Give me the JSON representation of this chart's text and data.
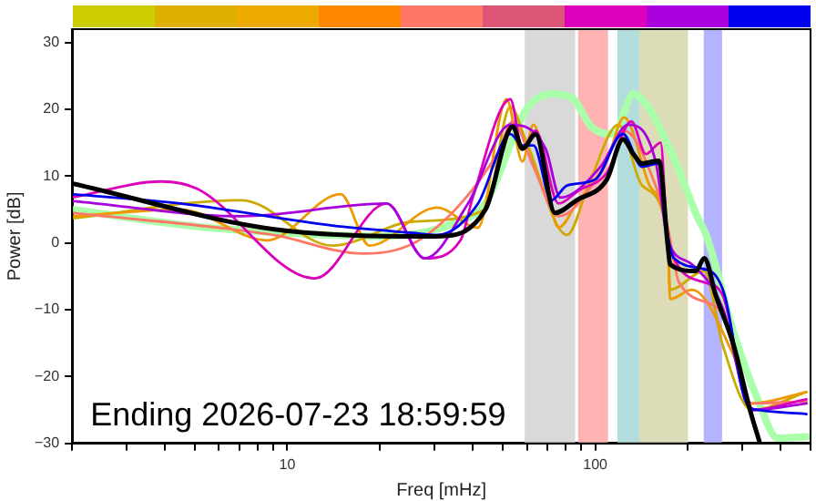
{
  "chart_data": {
    "type": "line",
    "xlabel": "Freq [mHz]",
    "ylabel": "Power [dB]",
    "xlim": [
      2,
      500
    ],
    "ylim": [
      -30,
      32
    ],
    "log": "x",
    "grid": false,
    "legend": false,
    "marker": "none",
    "line_style": "solid",
    "xticks": [
      {
        "value": 2,
        "label": null
      },
      {
        "value": 3,
        "label": null
      },
      {
        "value": 4,
        "label": null
      },
      {
        "value": 5,
        "label": null
      },
      {
        "value": 6,
        "label": null
      },
      {
        "value": 7,
        "label": null
      },
      {
        "value": 8,
        "label": null
      },
      {
        "value": 9,
        "label": null
      },
      10,
      {
        "value": 20,
        "label": null
      },
      {
        "value": 30,
        "label": null
      },
      {
        "value": 40,
        "label": null
      },
      {
        "value": 50,
        "label": null
      },
      {
        "value": 60,
        "label": null
      },
      {
        "value": 70,
        "label": null
      },
      {
        "value": 80,
        "label": null
      },
      {
        "value": 90,
        "label": null
      },
      100,
      {
        "value": 200,
        "label": null
      },
      {
        "value": 300,
        "label": null
      },
      {
        "value": 400,
        "label": null
      },
      {
        "value": 500,
        "label": null
      }
    ],
    "yticks": [
      {
        "value": -30,
        "label": "−30"
      },
      {
        "value": -20,
        "label": "−20"
      },
      {
        "value": -10,
        "label": "−10"
      },
      0,
      10,
      20,
      30
    ],
    "bands": [
      {
        "axis": "x",
        "from": 59,
        "to": 86,
        "color": "#d9d9d9"
      },
      {
        "axis": "x",
        "from": 88,
        "to": 110,
        "color": "#ffb3b3"
      },
      {
        "axis": "x",
        "from": 118,
        "to": 139,
        "color": "#b3dcdc"
      },
      {
        "axis": "x",
        "from": 139,
        "to": 200,
        "color": "#dcdcb8"
      },
      {
        "axis": "x",
        "from": 225,
        "to": 258,
        "color": "#b3b3ff"
      }
    ],
    "annotations": [
      "Ending 2026-07-23 18:59:59"
    ],
    "series": [
      {
        "color": "#aaffaa",
        "x": [
          2,
          5,
          10,
          20,
          35,
          44,
          60,
          72,
          85,
          97,
          115,
          133,
          150,
          180,
          214,
          230,
          281,
          341,
          390,
          485
        ],
        "values": [
          5,
          2.5,
          1.5,
          1,
          3,
          6,
          20.1,
          22.3,
          21.5,
          17.4,
          16.3,
          22.3,
          20,
          12.7,
          4,
          1,
          -13.3,
          -24,
          -29.2,
          -29
        ]
      },
      {
        "color": "#ccaa00",
        "x": [
          2,
          7.1,
          14,
          25.6,
          44,
          53,
          60,
          81,
          95,
          119,
          142,
          172,
          175,
          226,
          259,
          322,
          485
        ],
        "values": [
          3.7,
          6.4,
          -0.4,
          3.2,
          5,
          20.4,
          14.9,
          1.2,
          8.6,
          17.7,
          8.6,
          1.2,
          -7,
          -4.2,
          -15.2,
          -25,
          -22.3
        ]
      },
      {
        "color": "#ee9900",
        "x": [
          2,
          4.5,
          8.6,
          14.9,
          18.5,
          30.6,
          41.6,
          51.5,
          58,
          63,
          76,
          87,
          109,
          124,
          150,
          163,
          172,
          175,
          206,
          281,
          322,
          485
        ],
        "values": [
          4,
          5,
          0.4,
          7.3,
          -0.4,
          5.3,
          2.3,
          21.5,
          12.2,
          17.7,
          2.3,
          5.9,
          12.2,
          18.8,
          8.6,
          5.9,
          -0.4,
          -8.4,
          -7,
          -16.8,
          -24,
          -22.3
        ]
      },
      {
        "color": "#ff7766",
        "x": [
          2,
          9,
          17.6,
          28,
          48,
          54,
          63,
          76,
          104,
          124,
          157,
          172,
          187,
          259,
          318,
          485
        ],
        "values": [
          4.5,
          1.2,
          -1.6,
          1,
          13.3,
          18.2,
          11.4,
          4,
          10.5,
          16.8,
          8.6,
          2.3,
          -5.9,
          -10.5,
          -24,
          -23.7
        ]
      },
      {
        "color": "#dd00bb",
        "x": [
          2,
          3.9,
          5.1,
          12.3,
          21,
          28,
          36.5,
          40,
          53,
          58,
          64,
          76,
          88,
          109,
          131,
          146,
          163,
          172,
          226,
          259,
          322,
          485
        ],
        "values": [
          6.8,
          9.2,
          8.1,
          -5.3,
          5.9,
          -2.3,
          0.4,
          6.8,
          21.5,
          14.1,
          16.8,
          5.9,
          7.8,
          10.5,
          18.2,
          13.3,
          15,
          0.4,
          -5.9,
          -7.8,
          -25,
          -23.4
        ]
      },
      {
        "color": "#aa00dd",
        "x": [
          2,
          7.1,
          21,
          28,
          38.6,
          53,
          69,
          77,
          104,
          128,
          157,
          172,
          206,
          259,
          322,
          485
        ],
        "values": [
          6.3,
          4,
          5.9,
          -2.3,
          5.9,
          17.7,
          14.1,
          6.8,
          11.4,
          17.7,
          12.2,
          0.4,
          -3.2,
          -9.7,
          -25,
          -24
        ]
      },
      {
        "color": "#0000ee",
        "x": [
          2,
          4.5,
          14,
          25.6,
          30.6,
          41.6,
          53,
          58,
          63,
          72,
          81,
          100,
          123,
          142,
          161,
          172,
          180,
          236,
          263,
          310,
          341,
          485
        ],
        "values": [
          7.3,
          5.9,
          2.6,
          1.5,
          1.2,
          5.9,
          16.3,
          14.6,
          14.6,
          6.4,
          8.6,
          9.5,
          16.3,
          11.4,
          11.9,
          1.2,
          -2.3,
          -4.2,
          -7.8,
          -24,
          -25,
          -25.6
        ]
      },
      {
        "color": "#000000",
        "x": [
          2,
          10,
          30.6,
          44,
          54,
          58,
          64,
          74,
          87,
          109,
          123,
          133,
          142,
          161,
          172,
          175,
          212,
          226,
          246,
          281,
          318,
          341
        ],
        "values": [
          8.9,
          1.8,
          1,
          5,
          17.4,
          14.1,
          16.3,
          4.5,
          6.4,
          9.5,
          15.5,
          13.3,
          11.9,
          12.3,
          -0.4,
          -3.2,
          -4.2,
          -2.3,
          -7.8,
          -15.2,
          -25,
          -29.7
        ]
      }
    ]
  }
}
